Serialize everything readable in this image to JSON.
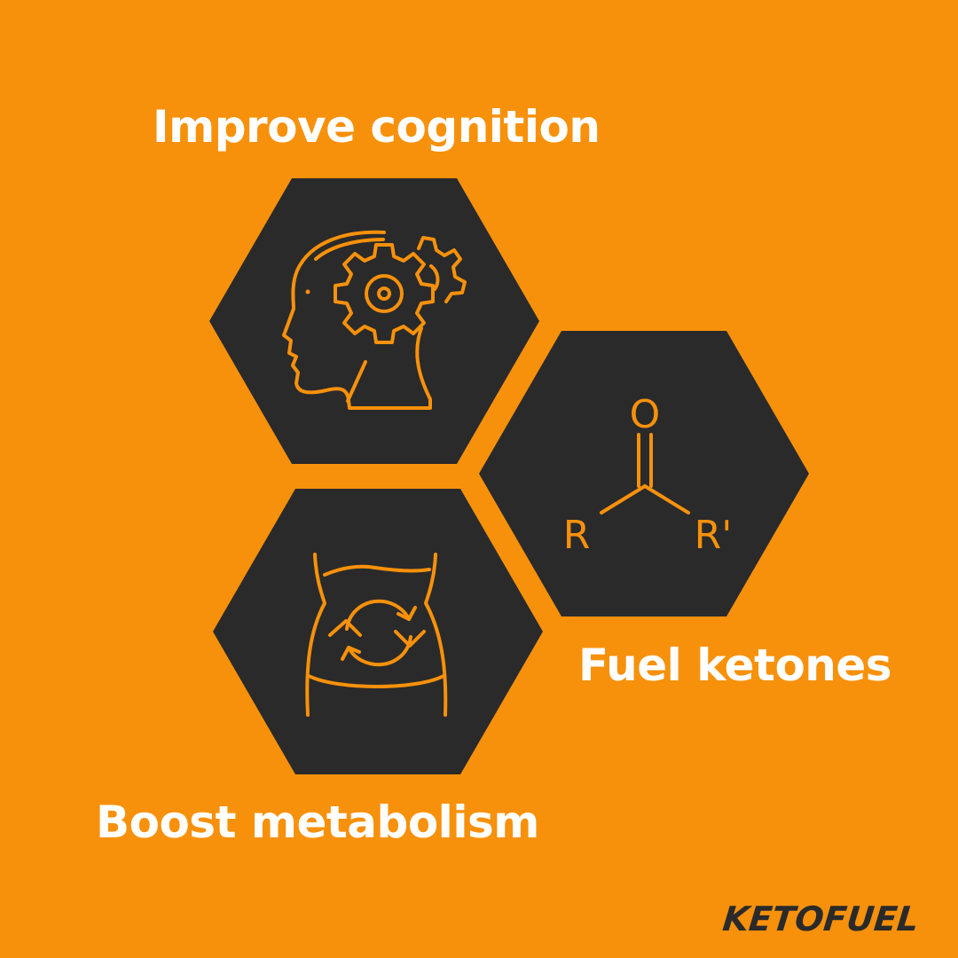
{
  "benefits": {
    "cognition": "Improve cognition",
    "ketones": "Fuel ketones",
    "metabolism": "Boost metabolism"
  },
  "ketone_structure": {
    "oxygen": "O",
    "left_group": "R",
    "right_group": "R'"
  },
  "brand": "KETOFUEL",
  "colors": {
    "background": "#F7910B",
    "hexagon": "#2A2A2A",
    "icon_stroke": "#F7910B",
    "text": "#FFFFFF"
  },
  "icons": [
    "head-gears-icon",
    "ketone-molecule-icon",
    "waist-metabolism-icon"
  ]
}
